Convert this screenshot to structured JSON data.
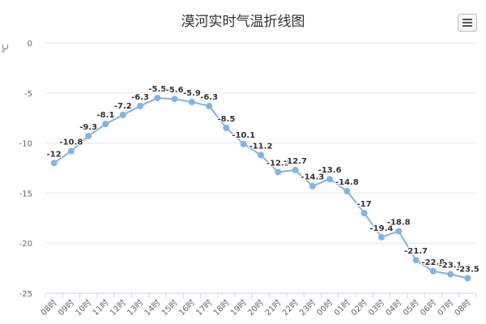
{
  "chart_data": {
    "type": "line",
    "title": "漠河实时气温折线图",
    "ylabel": "℃",
    "categories": [
      "08时",
      "09时",
      "10时",
      "11时",
      "12时",
      "13时",
      "14时",
      "15时",
      "16时",
      "17时",
      "18时",
      "19时",
      "20时",
      "21时",
      "22时",
      "23时",
      "00时",
      "01时",
      "02时",
      "03时",
      "04时",
      "05时",
      "06时",
      "07时",
      "08时"
    ],
    "values": [
      -12,
      -10.8,
      -9.3,
      -8.1,
      -7.2,
      -6.3,
      -5.5,
      -5.6,
      -5.9,
      -6.3,
      -8.5,
      -10.1,
      -11.2,
      -12.9,
      -12.7,
      -14.3,
      -13.6,
      -14.8,
      -17,
      -19.4,
      -18.8,
      -21.7,
      -22.8,
      -23.1,
      -23.5
    ],
    "data_labels": [
      "-12",
      "-10.8",
      "-9.3",
      "-8.1",
      "-7.2",
      "-6.3",
      "-5.5",
      "-5.6",
      "-5.9",
      "-6.3",
      "-8.5",
      "-10.1",
      "-11.2",
      "-12.9",
      "-12.7",
      "-14.3",
      "-13.6",
      "-14.8",
      "-17",
      "-19.4",
      "-18.8",
      "-21.7",
      "-22.8",
      "-23.1",
      "-23.5"
    ],
    "yticks": [
      0,
      -5,
      -10,
      -15,
      -20,
      -25
    ],
    "ylim": [
      -25,
      0
    ],
    "grid": true,
    "legend": false,
    "line_color": "#7cb5ec"
  },
  "menu_icon": "hamburger-menu-icon"
}
